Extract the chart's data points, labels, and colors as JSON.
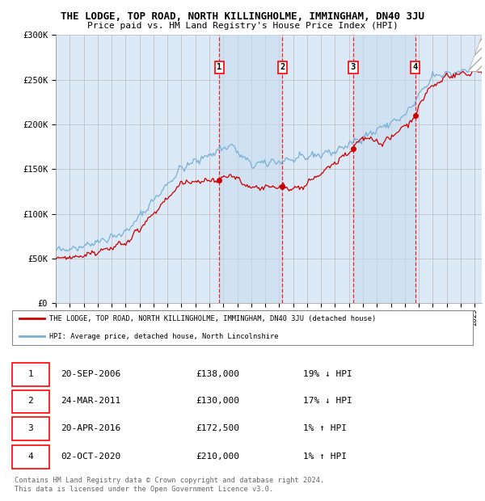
{
  "title": "THE LODGE, TOP ROAD, NORTH KILLINGHOLME, IMMINGHAM, DN40 3JU",
  "subtitle": "Price paid vs. HM Land Registry's House Price Index (HPI)",
  "ylim": [
    0,
    300000
  ],
  "yticks": [
    0,
    50000,
    100000,
    150000,
    200000,
    250000,
    300000
  ],
  "ytick_labels": [
    "£0",
    "£50K",
    "£100K",
    "£150K",
    "£200K",
    "£250K",
    "£300K"
  ],
  "background_color": "#ffffff",
  "plot_bg_color": "#dce9f7",
  "grid_color": "#bbbbbb",
  "hpi_color": "#7ab0d8",
  "price_color": "#cc0000",
  "sale_dates_num": [
    2006.72,
    2011.23,
    2016.3,
    2020.75
  ],
  "sale_prices": [
    138000,
    130000,
    172500,
    210000
  ],
  "sale_labels": [
    "1",
    "2",
    "3",
    "4"
  ],
  "legend_price_label": "THE LODGE, TOP ROAD, NORTH KILLINGHOLME, IMMINGHAM, DN40 3JU (detached house)",
  "legend_hpi_label": "HPI: Average price, detached house, North Lincolnshire",
  "table_rows": [
    [
      "1",
      "20-SEP-2006",
      "£138,000",
      "19% ↓ HPI"
    ],
    [
      "2",
      "24-MAR-2011",
      "£130,000",
      "17% ↓ HPI"
    ],
    [
      "3",
      "20-APR-2016",
      "£172,500",
      "1% ↑ HPI"
    ],
    [
      "4",
      "02-OCT-2020",
      "£210,000",
      "1% ↑ HPI"
    ]
  ],
  "footer": "Contains HM Land Registry data © Crown copyright and database right 2024.\nThis data is licensed under the Open Government Licence v3.0.",
  "xmin": 1995.0,
  "xmax": 2025.5
}
